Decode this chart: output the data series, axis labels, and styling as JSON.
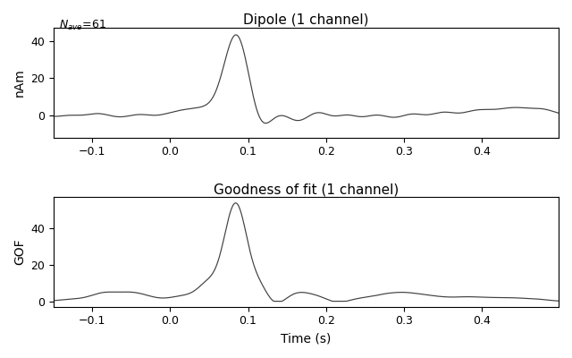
{
  "title1": "Dipole (1 channel)",
  "title2": "Goodness of fit (1 channel)",
  "nave_label": "N$_{ave}$=61",
  "ylabel1": "nAm",
  "ylabel2": "GOF",
  "xlabel": "Time (s)",
  "xlim": [
    -0.149,
    0.498
  ],
  "ylim1": [
    -12,
    47
  ],
  "ylim2": [
    -3,
    57
  ],
  "yticks1": [
    0,
    20,
    40
  ],
  "yticks2": [
    0,
    20,
    40
  ],
  "xticks": [
    -0.1,
    0.0,
    0.1,
    0.2,
    0.3,
    0.4
  ],
  "background_color": "#ffffff",
  "line_color": "#404040",
  "figsize": [
    6.4,
    4.0
  ],
  "dpi": 100
}
